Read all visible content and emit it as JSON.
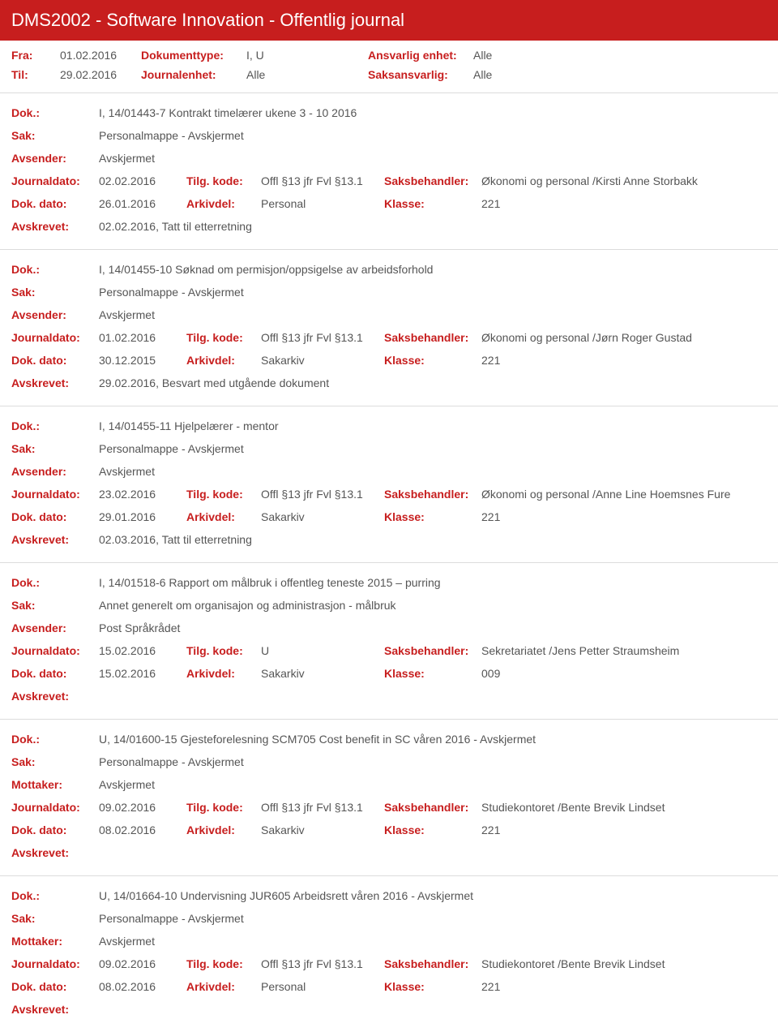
{
  "colors": {
    "header_bg": "#c71e1e",
    "header_text": "#ffffff",
    "label": "#c71e1e",
    "value": "#555555",
    "border": "#dcdcdc",
    "background": "#ffffff"
  },
  "header": {
    "title": "DMS2002 - Software Innovation - Offentlig journal"
  },
  "filters": {
    "fra_label": "Fra:",
    "fra_value": "01.02.2016",
    "til_label": "Til:",
    "til_value": "29.02.2016",
    "doktype_label": "Dokumenttype:",
    "doktype_value": "I, U",
    "journalenhet_label": "Journalenhet:",
    "journalenhet_value": "Alle",
    "ansvarlig_label": "Ansvarlig enhet:",
    "ansvarlig_value": "Alle",
    "saksansvarlig_label": "Saksansvarlig:",
    "saksansvarlig_value": "Alle"
  },
  "labels": {
    "dok": "Dok.:",
    "sak": "Sak:",
    "avsender": "Avsender:",
    "mottaker": "Mottaker:",
    "journaldato": "Journaldato:",
    "tilgkode": "Tilg. kode:",
    "saksbehandler": "Saksbehandler:",
    "dokdato": "Dok. dato:",
    "arkivdel": "Arkivdel:",
    "klasse": "Klasse:",
    "avskrevet": "Avskrevet:"
  },
  "entries": [
    {
      "dok": "I, 14/01443-7 Kontrakt timelærer ukene 3 - 10 2016",
      "sak": "Personalmappe - Avskjermet",
      "party_label": "Avsender:",
      "party": "Avskjermet",
      "journaldato": "02.02.2016",
      "tilgkode": "Offl §13 jfr Fvl §13.1",
      "saksbehandler": "Økonomi og personal /Kirsti Anne Storbakk",
      "dokdato": "26.01.2016",
      "arkivdel": "Personal",
      "klasse": "221",
      "avskrevet": "02.02.2016, Tatt til etterretning"
    },
    {
      "dok": "I, 14/01455-10 Søknad om permisjon/oppsigelse av arbeidsforhold",
      "sak": "Personalmappe - Avskjermet",
      "party_label": "Avsender:",
      "party": "Avskjermet",
      "journaldato": "01.02.2016",
      "tilgkode": "Offl §13 jfr Fvl §13.1",
      "saksbehandler": "Økonomi og personal /Jørn Roger Gustad",
      "dokdato": "30.12.2015",
      "arkivdel": "Sakarkiv",
      "klasse": "221",
      "avskrevet": "29.02.2016, Besvart med utgående dokument"
    },
    {
      "dok": "I, 14/01455-11 Hjelpelærer - mentor",
      "sak": "Personalmappe - Avskjermet",
      "party_label": "Avsender:",
      "party": "Avskjermet",
      "journaldato": "23.02.2016",
      "tilgkode": "Offl §13 jfr Fvl §13.1",
      "saksbehandler": "Økonomi og personal /Anne Line Hoemsnes Fure",
      "dokdato": "29.01.2016",
      "arkivdel": "Sakarkiv",
      "klasse": "221",
      "avskrevet": "02.03.2016, Tatt til etterretning"
    },
    {
      "dok": "I, 14/01518-6 Rapport om målbruk i offentleg teneste 2015 – purring",
      "sak": "Annet generelt om organisajon og administrasjon - målbruk",
      "party_label": "Avsender:",
      "party": "Post Språkrådet",
      "journaldato": "15.02.2016",
      "tilgkode": "U",
      "saksbehandler": "Sekretariatet /Jens Petter Straumsheim",
      "dokdato": "15.02.2016",
      "arkivdel": "Sakarkiv",
      "klasse": "009",
      "avskrevet": ""
    },
    {
      "dok": "U, 14/01600-15 Gjesteforelesning SCM705 Cost benefit in SC våren 2016 - Avskjermet",
      "sak": "Personalmappe - Avskjermet",
      "party_label": "Mottaker:",
      "party": "Avskjermet",
      "journaldato": "09.02.2016",
      "tilgkode": "Offl §13 jfr Fvl §13.1",
      "saksbehandler": "Studiekontoret /Bente Brevik Lindset",
      "dokdato": "08.02.2016",
      "arkivdel": "Sakarkiv",
      "klasse": "221",
      "avskrevet": ""
    },
    {
      "dok": "U, 14/01664-10 Undervisning JUR605 Arbeidsrett våren 2016 - Avskjermet",
      "sak": "Personalmappe - Avskjermet",
      "party_label": "Mottaker:",
      "party": "Avskjermet",
      "journaldato": "09.02.2016",
      "tilgkode": "Offl §13 jfr Fvl §13.1",
      "saksbehandler": "Studiekontoret /Bente Brevik Lindset",
      "dokdato": "08.02.2016",
      "arkivdel": "Personal",
      "klasse": "221",
      "avskrevet": ""
    }
  ]
}
